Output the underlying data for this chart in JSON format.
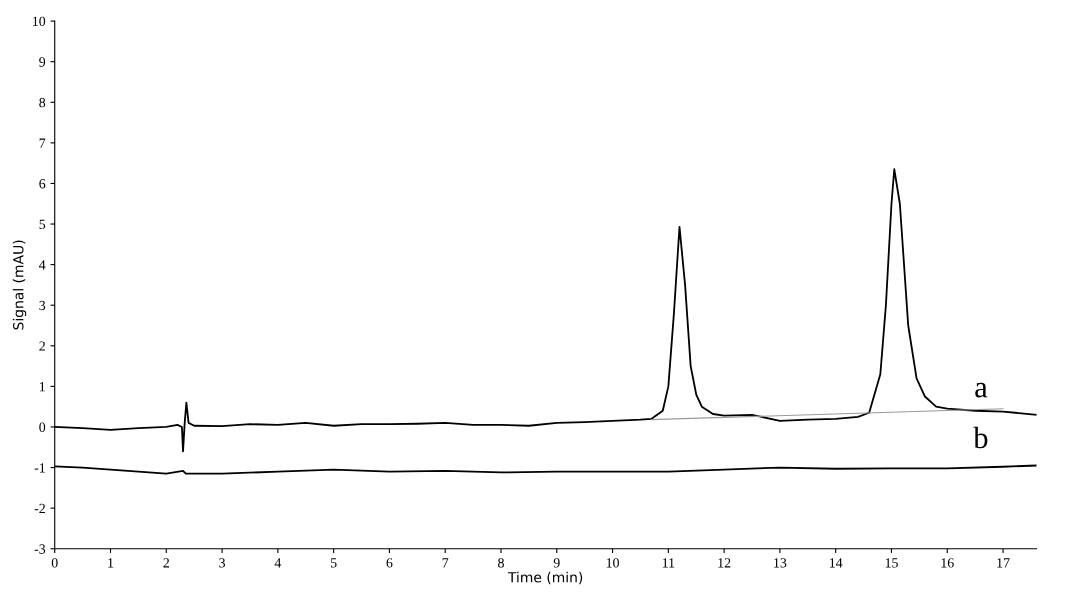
{
  "chart_data": {
    "type": "line",
    "xlabel": "Time (min)",
    "ylabel": "Signal (mAU)",
    "xlim": [
      0,
      17.6
    ],
    "xticks": [
      0,
      1,
      2,
      3,
      4,
      5,
      6,
      7,
      8,
      9,
      10,
      11,
      12,
      13,
      14,
      15,
      16,
      17
    ],
    "ylim": [
      -3,
      10
    ],
    "yticks": [
      -3,
      -2,
      -1,
      0,
      1,
      2,
      3,
      4,
      5,
      6,
      7,
      8,
      9,
      10
    ],
    "grid": false,
    "legend": false,
    "marker": "none",
    "line_style": "solid",
    "series": [
      {
        "name": "a",
        "color": "#000000",
        "x": [
          0,
          0.5,
          1,
          1.5,
          2,
          2.2,
          2.28,
          2.3,
          2.33,
          2.36,
          2.4,
          2.5,
          3,
          3.5,
          4,
          4.5,
          5,
          5.5,
          6,
          6.5,
          7,
          7.5,
          8,
          8.5,
          9,
          9.5,
          10,
          10.5,
          10.7,
          10.9,
          11.0,
          11.1,
          11.2,
          11.3,
          11.4,
          11.5,
          11.6,
          11.8,
          12.0,
          12.5,
          13,
          13.5,
          14,
          14.4,
          14.6,
          14.8,
          14.9,
          15.0,
          15.05,
          15.15,
          15.3,
          15.45,
          15.6,
          15.8,
          16,
          16.5,
          17,
          17.6
        ],
        "values": [
          0.0,
          -0.03,
          -0.07,
          -0.03,
          0.0,
          0.05,
          0.0,
          -0.6,
          0.1,
          0.6,
          0.1,
          0.03,
          0.02,
          0.07,
          0.05,
          0.1,
          0.03,
          0.07,
          0.07,
          0.08,
          0.1,
          0.05,
          0.05,
          0.03,
          0.1,
          0.12,
          0.15,
          0.18,
          0.2,
          0.4,
          1.0,
          2.8,
          4.93,
          3.5,
          1.5,
          0.8,
          0.5,
          0.32,
          0.28,
          0.3,
          0.15,
          0.18,
          0.2,
          0.25,
          0.35,
          1.3,
          3.0,
          5.5,
          6.35,
          5.5,
          2.5,
          1.2,
          0.75,
          0.5,
          0.45,
          0.4,
          0.38,
          0.3
        ]
      },
      {
        "name": "b",
        "color": "#000000",
        "x": [
          0,
          0.5,
          1,
          1.5,
          2,
          2.3,
          2.35,
          3,
          4,
          5,
          6,
          7,
          8,
          9,
          10,
          11,
          12,
          13,
          14,
          15,
          16,
          17,
          17.6
        ],
        "values": [
          -0.97,
          -1.0,
          -1.05,
          -1.1,
          -1.15,
          -1.08,
          -1.15,
          -1.15,
          -1.1,
          -1.05,
          -1.1,
          -1.08,
          -1.12,
          -1.1,
          -1.1,
          -1.1,
          -1.05,
          -1.0,
          -1.03,
          -1.02,
          -1.02,
          -0.98,
          -0.95
        ]
      },
      {
        "color": "#999999",
        "x": [
          10.7,
          17.0
        ],
        "values": [
          0.18,
          0.45
        ]
      }
    ]
  }
}
